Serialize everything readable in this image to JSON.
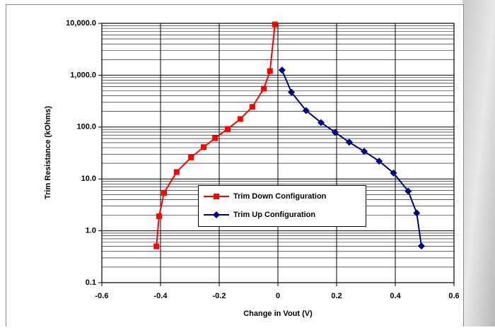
{
  "chart_data": {
    "type": "scatter-line",
    "x_label": "Change in Vout (V)",
    "y_label": "Trim Resistance (kOhms)",
    "log_y": true,
    "grid": true,
    "minor_grid": true,
    "legend": "center",
    "xlim": [
      -0.6,
      0.6
    ],
    "xticks": [
      -0.6,
      -0.4,
      -0.2,
      0,
      0.2,
      0.4,
      0.6
    ],
    "ylim": [
      0.1,
      10000
    ],
    "yticks": [
      {
        "value": 0.1,
        "label": "0.1"
      },
      {
        "value": 1,
        "label": "1.0"
      },
      {
        "value": 10,
        "label": "10.0"
      },
      {
        "value": 100,
        "label": "100.0"
      },
      {
        "value": 1000,
        "label": "1,000.0"
      },
      {
        "value": 10000,
        "label": "10,000.0"
      }
    ],
    "series": [
      {
        "name": "Trim Down Configuration",
        "color": "#ff0000",
        "marker": "square",
        "x": [
          -0.414,
          -0.405,
          -0.388,
          -0.345,
          -0.296,
          -0.253,
          -0.214,
          -0.171,
          -0.128,
          -0.087,
          -0.048,
          -0.027,
          -0.01
        ],
        "values": [
          0.5,
          1.9,
          5.4,
          13.6,
          26,
          41,
          61,
          92,
          143,
          245,
          550,
          1200,
          9500
        ]
      },
      {
        "name": "Trim Up Configuration",
        "color": "#000080",
        "marker": "diamond",
        "x": [
          0.014,
          0.046,
          0.096,
          0.147,
          0.195,
          0.243,
          0.294,
          0.345,
          0.394,
          0.444,
          0.473,
          0.489
        ],
        "values": [
          1250,
          470,
          208,
          122,
          79,
          51,
          34,
          22,
          13,
          5.8,
          2.2,
          0.51
        ]
      }
    ]
  }
}
